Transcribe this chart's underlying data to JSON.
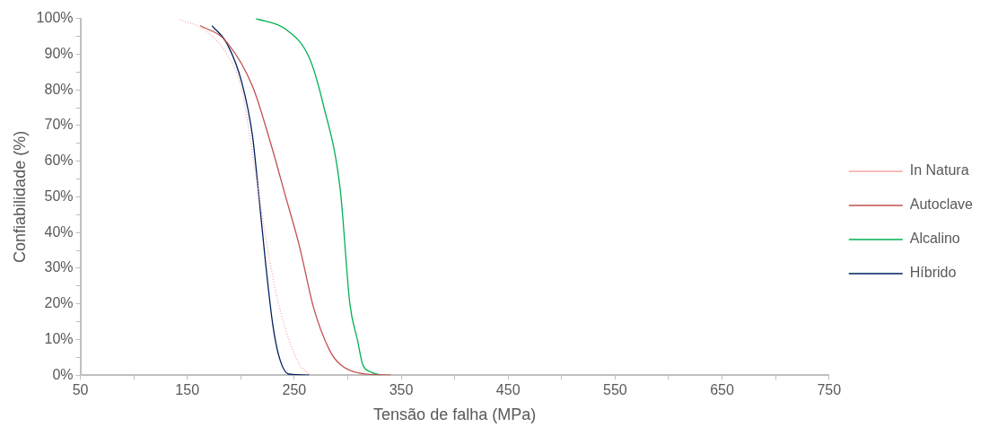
{
  "chart_data": {
    "type": "line",
    "xlabel": "Tensão de falha (MPa)",
    "ylabel": "Confiabilidade (%)",
    "xlim": [
      50,
      750
    ],
    "xticks": [
      50,
      {
        "value": 100,
        "label": null
      },
      150,
      {
        "value": 200,
        "label": null
      },
      250,
      {
        "value": 300,
        "label": null
      },
      350,
      {
        "value": 400,
        "label": null
      },
      450,
      {
        "value": 500,
        "label": null
      },
      550,
      {
        "value": 600,
        "label": null
      },
      650,
      {
        "value": 700,
        "label": null
      },
      750
    ],
    "ylim": [
      0,
      100
    ],
    "yticks": [
      {
        "value": 0,
        "label": "0%"
      },
      {
        "value": 5,
        "label": null
      },
      {
        "value": 10,
        "label": "10%"
      },
      {
        "value": 15,
        "label": null
      },
      {
        "value": 20,
        "label": "20%"
      },
      {
        "value": 25,
        "label": null
      },
      {
        "value": 30,
        "label": "30%"
      },
      {
        "value": 35,
        "label": null
      },
      {
        "value": 40,
        "label": "40%"
      },
      {
        "value": 45,
        "label": null
      },
      {
        "value": 50,
        "label": "50%"
      },
      {
        "value": 55,
        "label": null
      },
      {
        "value": 60,
        "label": "60%"
      },
      {
        "value": 65,
        "label": null
      },
      {
        "value": 70,
        "label": "70%"
      },
      {
        "value": 75,
        "label": null
      },
      {
        "value": 80,
        "label": "80%"
      },
      {
        "value": 85,
        "label": null
      },
      {
        "value": 90,
        "label": "90%"
      },
      {
        "value": 95,
        "label": null
      },
      {
        "value": 100,
        "label": "100%"
      }
    ],
    "grid": false,
    "legend": "right",
    "marker": "none",
    "series": [
      {
        "name": "In Natura",
        "color": "#f4a6a6",
        "line_style": "dotted",
        "x": [
          143,
          165,
          187,
          201,
          212,
          222,
          233,
          245,
          255,
          264
        ],
        "values": [
          99.7,
          97,
          90,
          80,
          60,
          41,
          23,
          10,
          3,
          0.3
        ]
      },
      {
        "name": "Autoclave",
        "color": "#c0504d",
        "line_style": "solid",
        "x": [
          162,
          185,
          211,
          226,
          242,
          255,
          268,
          283,
          293,
          312,
          340
        ],
        "values": [
          98,
          94,
          81,
          67,
          50,
          36,
          19,
          7,
          3,
          0.5,
          0
        ]
      },
      {
        "name": "Alcalino",
        "color": "#00b050",
        "line_style": "solid",
        "x": [
          214,
          242,
          264,
          277,
          293,
          302,
          309,
          314,
          321,
          331
        ],
        "values": [
          100,
          97,
          89,
          76,
          52,
          20,
          10,
          3,
          1,
          0
        ]
      },
      {
        "name": "Híbrido",
        "color": "#002060",
        "line_style": "solid",
        "x": [
          173,
          187,
          201,
          211,
          217,
          223,
          230,
          236,
          245,
          264
        ],
        "values": [
          98,
          93,
          82,
          67,
          50,
          32,
          14,
          5,
          0.3,
          0
        ]
      }
    ]
  }
}
